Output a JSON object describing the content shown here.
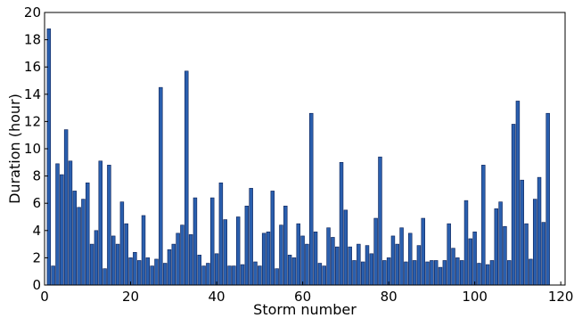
{
  "chart_data": {
    "type": "bar",
    "xlabel": "Storm number",
    "ylabel": "Duration (hour)",
    "xlim": [
      0,
      121
    ],
    "ylim": [
      0,
      20
    ],
    "xticks": [
      0,
      20,
      40,
      60,
      80,
      100,
      120
    ],
    "yticks": [
      0,
      2,
      4,
      6,
      8,
      10,
      12,
      14,
      16,
      18,
      20
    ],
    "grid": false,
    "legend": "none",
    "bar_color": "#2a5fae",
    "bar_edge_color": "#0a1f55",
    "x": [
      1,
      2,
      3,
      4,
      5,
      6,
      7,
      8,
      9,
      10,
      11,
      12,
      13,
      14,
      15,
      16,
      17,
      18,
      19,
      20,
      21,
      22,
      23,
      24,
      25,
      26,
      27,
      28,
      29,
      30,
      31,
      32,
      33,
      34,
      35,
      36,
      37,
      38,
      39,
      40,
      41,
      42,
      43,
      44,
      45,
      46,
      47,
      48,
      49,
      50,
      51,
      52,
      53,
      54,
      55,
      56,
      57,
      58,
      59,
      60,
      61,
      62,
      63,
      64,
      65,
      66,
      67,
      68,
      69,
      70,
      71,
      72,
      73,
      74,
      75,
      76,
      77,
      78,
      79,
      80,
      81,
      82,
      83,
      84,
      85,
      86,
      87,
      88,
      89,
      90,
      91,
      92,
      93,
      94,
      95,
      96,
      97,
      98,
      99,
      100,
      101,
      102,
      103,
      104,
      105,
      106,
      107,
      108,
      109,
      110,
      111,
      112,
      113,
      114,
      115,
      116,
      117,
      118,
      119,
      120
    ],
    "values": [
      18.8,
      1.4,
      8.9,
      8.1,
      11.4,
      9.1,
      6.9,
      5.7,
      6.3,
      7.5,
      3.0,
      4.0,
      9.1,
      1.2,
      8.8,
      3.6,
      3.0,
      6.1,
      4.5,
      2.0,
      2.4,
      1.8,
      5.1,
      2.0,
      1.4,
      1.9,
      14.5,
      1.6,
      2.6,
      3.0,
      3.8,
      4.4,
      15.7,
      3.7,
      6.4,
      2.2,
      1.4,
      1.6,
      6.4,
      2.3,
      7.5,
      4.8,
      1.4,
      1.4,
      5.0,
      1.5,
      5.8,
      7.1,
      1.7,
      1.4,
      3.8,
      3.9,
      6.9,
      1.2,
      4.4,
      5.8,
      2.2,
      2.0,
      4.5,
      3.6,
      3.0,
      12.6,
      3.9,
      1.6,
      1.4,
      4.2,
      3.5,
      2.8,
      9.0,
      5.5,
      2.8,
      1.8,
      3.0,
      1.7,
      2.9,
      2.3,
      4.9,
      9.4,
      1.8,
      2.0,
      3.6,
      3.0,
      4.2,
      1.7,
      3.8,
      1.8,
      2.9,
      4.9,
      1.7,
      1.8,
      1.8,
      1.3,
      1.8,
      4.5,
      2.7,
      2.0,
      1.8,
      6.2,
      3.4,
      3.9,
      1.6,
      8.8,
      1.5,
      1.8,
      5.6,
      6.1,
      4.3,
      1.8,
      11.8,
      13.5,
      7.7,
      4.5,
      1.9,
      6.3,
      7.9,
      4.6,
      12.6,
      0,
      0,
      0
    ]
  }
}
